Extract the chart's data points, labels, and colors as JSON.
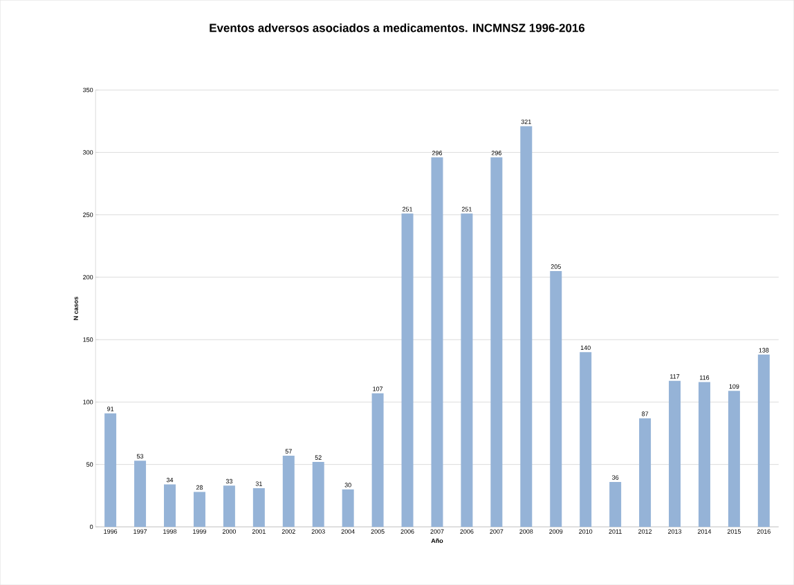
{
  "chart_data": {
    "type": "bar",
    "title": "Eventos adversos asociados a medicamentos. INCMNSZ 1996-2016",
    "xlabel": "Año",
    "ylabel": "N casos",
    "categories": [
      "1996",
      "1997",
      "1998",
      "1999",
      "2000",
      "2001",
      "2002",
      "2003",
      "2004",
      "2005",
      "2006",
      "2007",
      "2006",
      "2007",
      "2008",
      "2009",
      "2010",
      "2011",
      "2012",
      "2013",
      "2014",
      "2015",
      "2016"
    ],
    "values": [
      91,
      53,
      34,
      28,
      33,
      31,
      57,
      52,
      30,
      107,
      251,
      296,
      251,
      296,
      321,
      205,
      140,
      36,
      87,
      117,
      116,
      109,
      138
    ],
    "color": "#95b3d7",
    "ylim": [
      0,
      350
    ],
    "yticks": [
      0,
      50,
      100,
      150,
      200,
      250,
      300,
      350
    ],
    "grid": "y",
    "data_labels": true
  }
}
